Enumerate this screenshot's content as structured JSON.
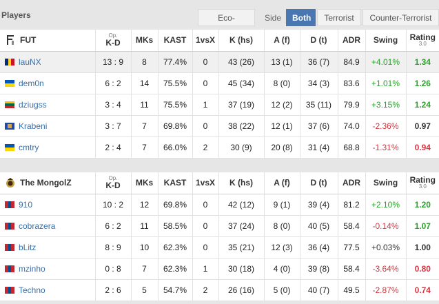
{
  "header": {
    "title": "Players",
    "eco_label": "Eco-adjusted",
    "side_label": "Side",
    "both_label": "Both",
    "t_label": "Terrorist",
    "ct_label": "Counter-Terrorist"
  },
  "columns": {
    "op": "Op.",
    "kd": "K-D",
    "mks": "MKs",
    "kast": "KAST",
    "vsx": "1vsX",
    "khs": "K (hs)",
    "af": "A (f)",
    "dt": "D (t)",
    "adr": "ADR",
    "swing": "Swing",
    "rating": "Rating",
    "rating_ver": "3.0"
  },
  "teams": [
    {
      "name": "FUT",
      "players": [
        {
          "name": "lauNX",
          "kd": "13 : 9",
          "mks": "8",
          "kast": "77.4%",
          "vsx": "0",
          "khs": "43 (26)",
          "af": "13 (1)",
          "dt": "36 (7)",
          "adr": "84.9",
          "swing": "+4.01%",
          "rating": "1.34"
        },
        {
          "name": "dem0n",
          "kd": "6 : 2",
          "mks": "14",
          "kast": "75.5%",
          "vsx": "0",
          "khs": "45 (34)",
          "af": "8 (0)",
          "dt": "34 (3)",
          "adr": "83.6",
          "swing": "+1.01%",
          "rating": "1.26"
        },
        {
          "name": "dziugss",
          "kd": "3 : 4",
          "mks": "11",
          "kast": "75.5%",
          "vsx": "1",
          "khs": "37 (19)",
          "af": "12 (2)",
          "dt": "35 (11)",
          "adr": "79.9",
          "swing": "+3.15%",
          "rating": "1.24"
        },
        {
          "name": "Krabeni",
          "kd": "3 : 7",
          "mks": "7",
          "kast": "69.8%",
          "vsx": "0",
          "khs": "38 (22)",
          "af": "12 (1)",
          "dt": "37 (6)",
          "adr": "74.0",
          "swing": "-2.36%",
          "rating": "0.97"
        },
        {
          "name": "cmtry",
          "kd": "2 : 4",
          "mks": "7",
          "kast": "66.0%",
          "vsx": "2",
          "khs": "30 (9)",
          "af": "20 (8)",
          "dt": "31 (4)",
          "adr": "68.8",
          "swing": "-1.31%",
          "rating": "0.94"
        }
      ]
    },
    {
      "name": "The MongolZ",
      "players": [
        {
          "name": "910",
          "kd": "10 : 2",
          "mks": "12",
          "kast": "69.8%",
          "vsx": "0",
          "khs": "42 (12)",
          "af": "9 (1)",
          "dt": "39 (4)",
          "adr": "81.2",
          "swing": "+2.10%",
          "rating": "1.20"
        },
        {
          "name": "cobrazera",
          "kd": "6 : 2",
          "mks": "11",
          "kast": "58.5%",
          "vsx": "0",
          "khs": "37 (24)",
          "af": "8 (0)",
          "dt": "40 (5)",
          "adr": "58.4",
          "swing": "-0.14%",
          "rating": "1.07"
        },
        {
          "name": "bLitz",
          "kd": "8 : 9",
          "mks": "10",
          "kast": "62.3%",
          "vsx": "0",
          "khs": "35 (21)",
          "af": "12 (3)",
          "dt": "36 (4)",
          "adr": "77.5",
          "swing": "+0.03%",
          "rating": "1.00"
        },
        {
          "name": "mzinho",
          "kd": "0 : 8",
          "mks": "7",
          "kast": "62.3%",
          "vsx": "1",
          "khs": "30 (18)",
          "af": "4 (0)",
          "dt": "39 (8)",
          "adr": "58.4",
          "swing": "-3.64%",
          "rating": "0.80"
        },
        {
          "name": "Techno",
          "kd": "2 : 6",
          "mks": "5",
          "kast": "54.7%",
          "vsx": "2",
          "khs": "26 (16)",
          "af": "5 (0)",
          "dt": "40 (7)",
          "adr": "49.5",
          "swing": "-2.87%",
          "rating": "0.74"
        }
      ]
    }
  ],
  "colors": {
    "positive": "#2aa12a",
    "negative": "#d9333f",
    "accent": "#4a77b1",
    "link": "#3b6fa8"
  }
}
